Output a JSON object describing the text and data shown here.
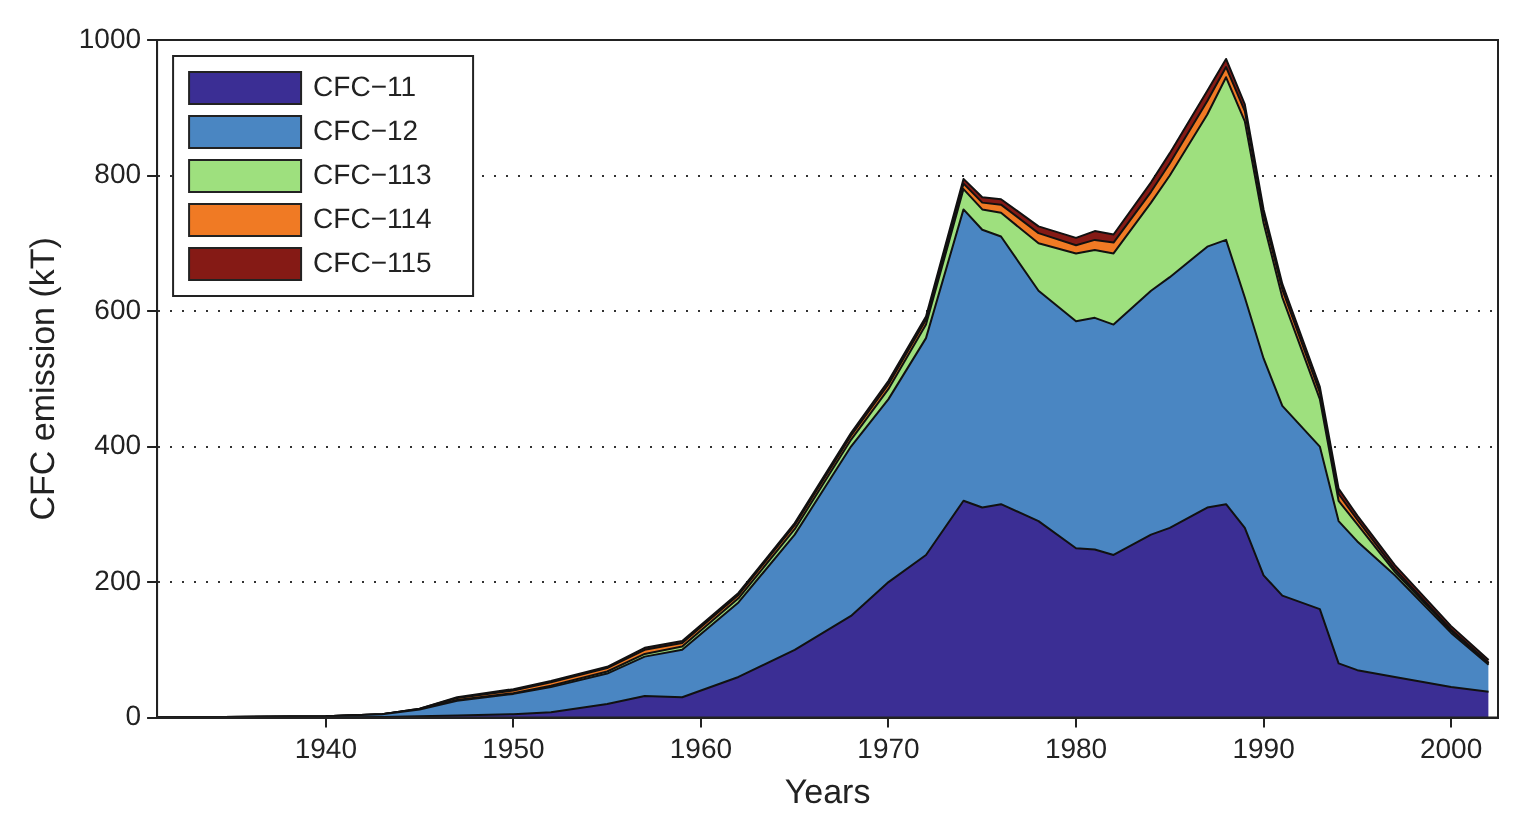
{
  "chart_data": {
    "type": "area",
    "stacked": true,
    "xlabel": "Years",
    "ylabel": "CFC emission (kT)",
    "x": [
      1931,
      1940,
      1943,
      1945,
      1947,
      1950,
      1952,
      1955,
      1957,
      1959,
      1962,
      1965,
      1968,
      1970,
      1972,
      1974,
      1975,
      1976,
      1978,
      1980,
      1981,
      1982,
      1984,
      1985,
      1987,
      1988,
      1989,
      1990,
      1991,
      1993,
      1994,
      1995,
      1997,
      2000,
      2002
    ],
    "series": [
      {
        "name": "CFC−11",
        "color": "#3b2e94",
        "values": [
          0,
          0,
          1,
          2,
          3,
          5,
          8,
          20,
          32,
          30,
          60,
          100,
          150,
          200,
          240,
          320,
          310,
          315,
          290,
          250,
          248,
          240,
          270,
          280,
          310,
          315,
          280,
          210,
          180,
          160,
          80,
          70,
          60,
          45,
          38
        ]
      },
      {
        "name": "CFC−12",
        "color": "#4a86c2",
        "values": [
          0,
          2,
          4,
          10,
          22,
          30,
          37,
          45,
          58,
          70,
          110,
          170,
          250,
          270,
          320,
          430,
          410,
          395,
          340,
          335,
          342,
          340,
          360,
          370,
          385,
          390,
          340,
          320,
          280,
          240,
          210,
          190,
          150,
          80,
          40
        ]
      },
      {
        "name": "CFC−113",
        "color": "#9ee07e",
        "values": [
          0,
          0,
          0,
          0,
          1,
          1,
          2,
          3,
          4,
          5,
          6,
          8,
          10,
          15,
          20,
          30,
          30,
          35,
          70,
          100,
          100,
          105,
          130,
          150,
          195,
          240,
          260,
          200,
          160,
          70,
          30,
          25,
          5,
          3,
          2
        ]
      },
      {
        "name": "CFC−114",
        "color": "#f07a24",
        "values": [
          0,
          0,
          0,
          1,
          3,
          4,
          5,
          5,
          6,
          5,
          5,
          6,
          6,
          7,
          7,
          8,
          10,
          12,
          15,
          12,
          15,
          16,
          16,
          18,
          20,
          15,
          15,
          12,
          12,
          10,
          10,
          7,
          4,
          2,
          1
        ]
      },
      {
        "name": "CFC−115",
        "color": "#851a15",
        "values": [
          0,
          0,
          0,
          0,
          1,
          2,
          2,
          2,
          3,
          3,
          3,
          3,
          4,
          5,
          5,
          7,
          8,
          8,
          10,
          11,
          13,
          12,
          14,
          15,
          15,
          12,
          10,
          8,
          8,
          8,
          8,
          6,
          6,
          5,
          4
        ]
      }
    ],
    "xlim": [
      1931,
      2002.5
    ],
    "xticks": [
      1940,
      1950,
      1960,
      1970,
      1980,
      1990,
      2000
    ],
    "ylim": [
      0,
      1000
    ],
    "yticks": [
      0,
      200,
      400,
      600,
      800,
      1000
    ],
    "grid": "y",
    "legend": "top left",
    "line_style": "solid",
    "marker": "none"
  }
}
